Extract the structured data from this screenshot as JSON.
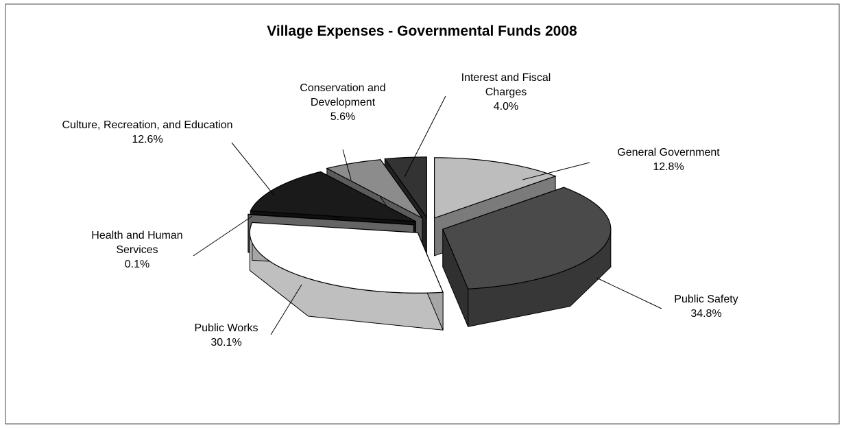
{
  "chart_data": {
    "type": "pie3d",
    "title": "Village Expenses - Governmental Funds 2008",
    "categories": [
      "General Government",
      "Public Safety",
      "Public Works",
      "Health and Human Services",
      "Culture, Recreation, and Education",
      "Conservation and Development",
      "Interest and Fiscal Charges"
    ],
    "values": [
      12.8,
      34.8,
      30.1,
      0.1,
      12.6,
      5.6,
      4.0
    ],
    "value_labels": [
      "12.8%",
      "34.8%",
      "30.1%",
      "0.1%",
      "12.6%",
      "5.6%",
      "4.0%"
    ],
    "colors": [
      "#bdbdbd",
      "#4a4a4a",
      "#ffffff",
      "#9a9a9a",
      "#1a1a1a",
      "#8c8c8c",
      "#333333"
    ]
  }
}
